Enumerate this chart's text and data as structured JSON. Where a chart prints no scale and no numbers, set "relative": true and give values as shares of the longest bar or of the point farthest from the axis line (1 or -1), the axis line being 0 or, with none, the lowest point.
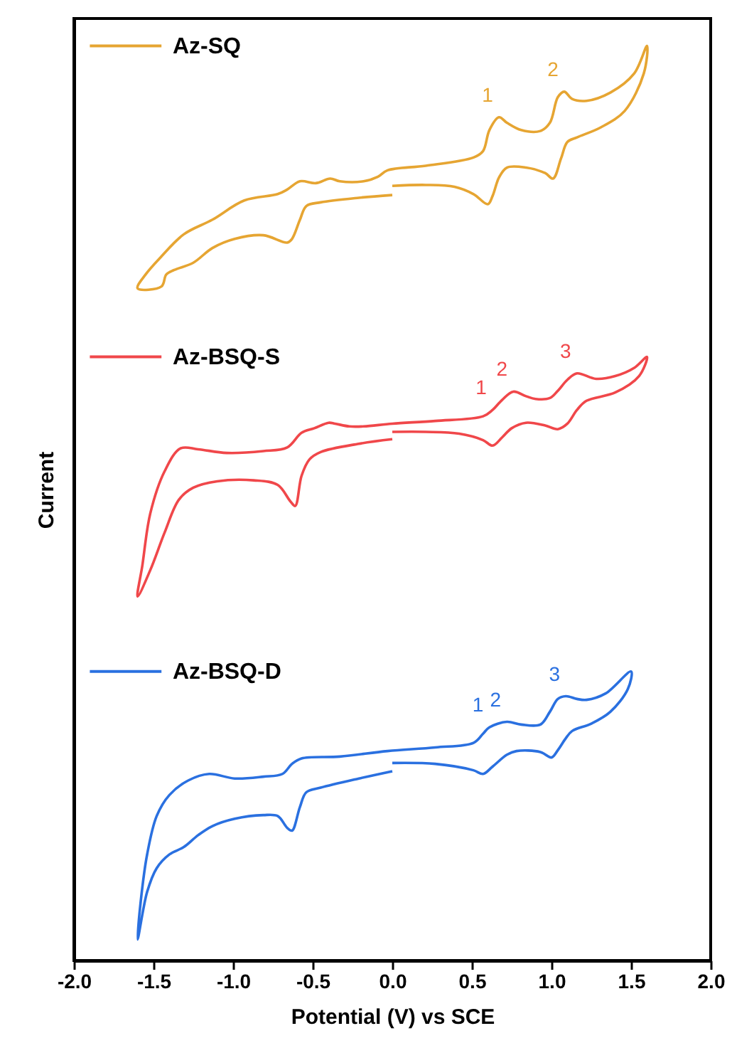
{
  "chart_data": {
    "type": "line",
    "relative": true,
    "xlabel": "Potential (V) vs SCE",
    "ylabel": "Current",
    "xlim": [
      -2.0,
      2.0
    ],
    "xticks": [
      {
        "value": -2,
        "label": "-2.0"
      },
      {
        "value": -1.5,
        "label": "-1.5"
      },
      {
        "value": -1,
        "label": "-1.0"
      },
      {
        "value": -0.5,
        "label": "-0.5"
      },
      {
        "value": 0,
        "label": "0.0"
      },
      {
        "value": 0.5,
        "label": "0.5"
      },
      {
        "value": 1,
        "label": "1.0"
      },
      {
        "value": 1.5,
        "label": "1.5"
      },
      {
        "value": 2,
        "label": "2.0"
      }
    ],
    "legend": "left",
    "grid": false,
    "marker": "none",
    "line_style": "solid",
    "series": [
      {
        "name": "Az-SQ",
        "color": "#e6a532",
        "x": [
          0,
          -0.21,
          -0.45,
          -0.54,
          -0.58,
          -0.63,
          -0.66,
          -0.81,
          -0.99,
          -1.13,
          -1.25,
          -1.37,
          -1.42,
          -1.45,
          -1.6,
          -1.55,
          -1.46,
          -1.31,
          -1.13,
          -0.93,
          -0.72,
          -0.66,
          -0.58,
          -0.48,
          -0.39,
          -0.33,
          -0.18,
          -0.09,
          -0.03,
          0.21,
          0.51,
          0.57,
          0.61,
          0.67,
          0.72,
          0.81,
          0.93,
          0.99,
          1.04,
          1.08,
          1.13,
          1.22,
          1.37,
          1.52,
          1.6,
          1.58,
          1.46,
          1.31,
          1.16,
          1.1,
          1.06,
          1.01,
          0.96,
          0.84,
          0.72,
          0.67,
          0.63,
          0.6,
          0.51,
          0.39,
          0.21,
          0
        ],
        "values": [
          0.837,
          0.834,
          0.829,
          0.825,
          0.81,
          0.789,
          0.785,
          0.793,
          0.789,
          0.779,
          0.763,
          0.755,
          0.75,
          0.737,
          0.735,
          0.75,
          0.768,
          0.794,
          0.81,
          0.831,
          0.838,
          0.843,
          0.852,
          0.85,
          0.855,
          0.852,
          0.852,
          0.857,
          0.864,
          0.869,
          0.878,
          0.885,
          0.908,
          0.922,
          0.916,
          0.908,
          0.907,
          0.916,
          0.944,
          0.95,
          0.942,
          0.94,
          0.949,
          0.97,
          1.0,
          0.97,
          0.929,
          0.911,
          0.9,
          0.895,
          0.877,
          0.855,
          0.861,
          0.867,
          0.867,
          0.856,
          0.836,
          0.827,
          0.838,
          0.846,
          0.848,
          0.847
        ]
      },
      {
        "name": "Az-BSQ-S",
        "color": "#f0474a",
        "x": [
          0,
          -0.21,
          -0.45,
          -0.52,
          -0.57,
          -0.61,
          -0.64,
          -0.72,
          -0.87,
          -1.1,
          -1.25,
          -1.34,
          -1.43,
          -1.52,
          -1.6,
          -1.57,
          -1.52,
          -1.43,
          -1.33,
          -1.22,
          -1.04,
          -0.81,
          -0.66,
          -0.57,
          -0.49,
          -0.4,
          -0.36,
          -0.27,
          -0.18,
          0,
          0.27,
          0.57,
          0.63,
          0.69,
          0.76,
          0.84,
          0.9,
          0.99,
          1.04,
          1.1,
          1.16,
          1.28,
          1.4,
          1.52,
          1.6,
          1.55,
          1.4,
          1.22,
          1.16,
          1.1,
          1.04,
          0.96,
          0.84,
          0.75,
          0.69,
          0.63,
          0.57,
          0.42,
          0.21,
          0
        ],
        "values": [
          0.57,
          0.565,
          0.556,
          0.548,
          0.53,
          0.497,
          0.502,
          0.52,
          0.525,
          0.524,
          0.517,
          0.504,
          0.468,
          0.427,
          0.398,
          0.432,
          0.489,
          0.535,
          0.56,
          0.559,
          0.555,
          0.557,
          0.561,
          0.577,
          0.582,
          0.588,
          0.587,
          0.584,
          0.584,
          0.587,
          0.59,
          0.595,
          0.602,
          0.613,
          0.622,
          0.617,
          0.614,
          0.615,
          0.623,
          0.635,
          0.642,
          0.636,
          0.639,
          0.648,
          0.66,
          0.639,
          0.621,
          0.612,
          0.602,
          0.587,
          0.581,
          0.585,
          0.588,
          0.582,
          0.572,
          0.563,
          0.569,
          0.576,
          0.578,
          0.578
        ]
      },
      {
        "name": "Az-BSQ-D",
        "color": "#2a70e0",
        "x": [
          0,
          -0.21,
          -0.45,
          -0.54,
          -0.58,
          -0.63,
          -0.66,
          -0.72,
          -0.81,
          -0.99,
          -1.13,
          -1.22,
          -1.31,
          -1.4,
          -1.48,
          -1.54,
          -1.6,
          -1.58,
          -1.54,
          -1.48,
          -1.4,
          -1.28,
          -1.15,
          -0.99,
          -0.81,
          -0.69,
          -0.63,
          -0.57,
          -0.33,
          -0.03,
          0.27,
          0.51,
          0.57,
          0.61,
          0.72,
          0.81,
          0.93,
          0.99,
          1.04,
          1.09,
          1.16,
          1.22,
          1.34,
          1.5,
          1.48,
          1.37,
          1.25,
          1.13,
          1.09,
          1.04,
          1.0,
          0.93,
          0.78,
          0.72,
          0.63,
          0.57,
          0.51,
          0.27,
          0
        ],
        "values": [
          0.207,
          0.199,
          0.189,
          0.184,
          0.168,
          0.142,
          0.145,
          0.158,
          0.159,
          0.155,
          0.147,
          0.137,
          0.124,
          0.116,
          0.101,
          0.075,
          0.023,
          0.065,
          0.116,
          0.158,
          0.181,
          0.197,
          0.204,
          0.199,
          0.201,
          0.204,
          0.215,
          0.221,
          0.223,
          0.229,
          0.233,
          0.238,
          0.248,
          0.255,
          0.261,
          0.258,
          0.258,
          0.272,
          0.286,
          0.289,
          0.286,
          0.285,
          0.292,
          0.316,
          0.297,
          0.272,
          0.259,
          0.251,
          0.243,
          0.23,
          0.222,
          0.228,
          0.229,
          0.225,
          0.212,
          0.204,
          0.208,
          0.215,
          0.216
        ]
      }
    ],
    "annotations": [
      {
        "text": "1",
        "x": 0.67,
        "y": 0.922
      },
      {
        "text": "2",
        "x": 1.08,
        "y": 0.95
      },
      {
        "text": "1",
        "x": 0.63,
        "y": 0.602
      },
      {
        "text": "2",
        "x": 0.76,
        "y": 0.622
      },
      {
        "text": "3",
        "x": 1.16,
        "y": 0.642
      },
      {
        "text": "1",
        "x": 0.61,
        "y": 0.255
      },
      {
        "text": "2",
        "x": 0.72,
        "y": 0.261
      },
      {
        "text": "3",
        "x": 1.09,
        "y": 0.289
      }
    ]
  }
}
